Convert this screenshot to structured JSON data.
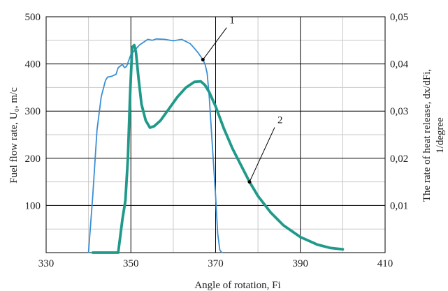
{
  "chart_data": {
    "type": "line",
    "xlabel": "Angle of rotation, Fi",
    "ylabel_left": "Fuel flow rate, U₀, m/c",
    "ylabel_right_line1": "The rate of heat release, dx/dFi,",
    "ylabel_right_line2": "1/degree",
    "x_ticks": [
      "330",
      "350",
      "370",
      "390",
      "410"
    ],
    "y_left_ticks": [
      "100",
      "200",
      "300",
      "400",
      "500"
    ],
    "y_right_ticks": [
      "0,01",
      "0,02",
      "0,03",
      "0,04",
      "0,05"
    ],
    "xlim": [
      330,
      410
    ],
    "ylim_left": [
      0,
      500
    ],
    "ylim_right": [
      0,
      0.05
    ],
    "grid": true,
    "series": [
      {
        "label": "1",
        "axis": "left",
        "color": "#3b8fd4",
        "x": [
          340,
          341,
          342,
          343,
          344,
          344.5,
          345.5,
          346.5,
          347,
          348,
          348.5,
          349,
          350,
          352,
          354,
          355,
          356,
          358,
          360,
          362,
          364,
          365,
          366,
          367,
          367.5,
          368,
          368.5,
          369,
          370,
          370.5,
          371,
          371.5
        ],
        "y": [
          0,
          120,
          260,
          330,
          365,
          372,
          374,
          378,
          392,
          399,
          392,
          395,
          420,
          440,
          452,
          450,
          453,
          452,
          449,
          452,
          443,
          433,
          422,
          409,
          400,
          380,
          330,
          260,
          120,
          40,
          5,
          0
        ]
      },
      {
        "label": "2",
        "axis": "right",
        "color": "#1f9a8a",
        "x": [
          341,
          347,
          348,
          348.7,
          349.3,
          349.8,
          350.3,
          350.8,
          351.2,
          351.8,
          352.5,
          353.5,
          354.5,
          355.5,
          357,
          359,
          361,
          363,
          365,
          366.5,
          367.5,
          368.5,
          370,
          372,
          374,
          376,
          378,
          380,
          383,
          386,
          390,
          394,
          397,
          400
        ],
        "y": [
          0,
          0,
          0.007,
          0.011,
          0.02,
          0.033,
          0.0435,
          0.044,
          0.0425,
          0.037,
          0.0315,
          0.028,
          0.0265,
          0.0268,
          0.028,
          0.0305,
          0.033,
          0.035,
          0.0362,
          0.0363,
          0.0355,
          0.034,
          0.031,
          0.0262,
          0.022,
          0.0185,
          0.015,
          0.012,
          0.0085,
          0.0058,
          0.0033,
          0.0017,
          0.001,
          0.0007
        ]
      }
    ],
    "annotations": [
      {
        "text": "1",
        "series": 0,
        "point_x": 367,
        "point_y": 409
      },
      {
        "text": "2",
        "series": 1,
        "point_x": 378,
        "point_y": 0.015
      }
    ]
  }
}
